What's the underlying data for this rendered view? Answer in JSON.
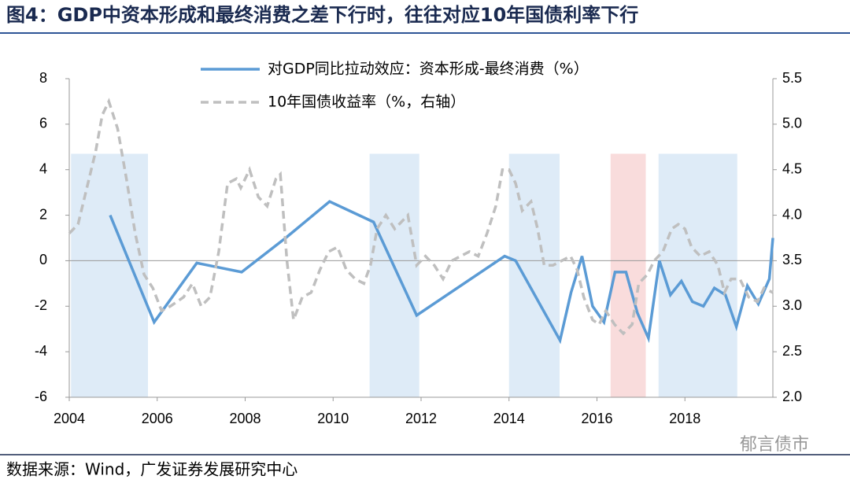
{
  "chart_data": {
    "type": "line",
    "title": "图4：GDP中资本形成和最终消费之差下行时，往往对应10年国债利率下行",
    "source": "数据来源：Wind，广发证券发展研究中心",
    "watermark": "郁言债市",
    "xlim": [
      2004,
      2020
    ],
    "xticks": [
      2004,
      2006,
      2008,
      2010,
      2012,
      2014,
      2016,
      2018
    ],
    "ylim": [
      -6,
      8
    ],
    "yticks": [
      -6,
      -4,
      -2,
      0,
      2,
      4,
      6,
      8
    ],
    "y2lim": [
      2.0,
      5.5
    ],
    "y2ticks": [
      {
        "value": 2.0,
        "label": "2.0"
      },
      2.5,
      {
        "value": 3.0,
        "label": "3.0"
      },
      3.5,
      {
        "value": 4.0,
        "label": "4.0"
      },
      4.5,
      {
        "value": 5.0,
        "label": "5.0"
      },
      5.5
    ],
    "bands": [
      {
        "start": 2004.04,
        "end": 2005.79,
        "top": 4.7,
        "color": "#deebf7"
      },
      {
        "start": 2010.83,
        "end": 2011.96,
        "top": 4.7,
        "color": "#deebf7"
      },
      {
        "start": 2014.0,
        "end": 2015.15,
        "top": 4.7,
        "color": "#deebf7"
      },
      {
        "start": 2016.31,
        "end": 2017.11,
        "top": 4.7,
        "color": "#f9dcdc"
      },
      {
        "start": 2017.4,
        "end": 2019.19,
        "top": 4.7,
        "color": "#deebf7"
      }
    ],
    "series": [
      {
        "name": "对GDP同比拉动效应：资本形成-最终消费（%）",
        "color": "#5b9bd5",
        "dash": false,
        "x": [
          2004.93,
          2005.93,
          2006.9,
          2007.92,
          2008.92,
          2009.92,
          2010.92,
          2011.9,
          2013.9,
          2014.15,
          2015.16,
          2015.41,
          2015.66,
          2015.9,
          2016.16,
          2016.41,
          2016.66,
          2016.92,
          2017.17,
          2017.42,
          2017.67,
          2017.92,
          2018.17,
          2018.42,
          2018.67,
          2018.92,
          2019.17,
          2019.42,
          2019.67,
          2019.92,
          2020.0
        ],
        "values": [
          2.0,
          -2.7,
          -0.1,
          -0.5,
          1.0,
          2.6,
          1.7,
          -2.4,
          0.2,
          0.0,
          -3.5,
          -1.4,
          0.2,
          -2.0,
          -2.7,
          -0.5,
          -0.5,
          -2.3,
          -3.4,
          0.0,
          -1.5,
          -0.9,
          -1.8,
          -2.0,
          -1.2,
          -1.5,
          -2.9,
          -1.1,
          -1.9,
          -0.8,
          1.0
        ]
      },
      {
        "name": "10年国债收益率（%，右轴）",
        "color": "#bfbfbf",
        "dash": true,
        "axis": "y2",
        "x": [
          2004.0,
          2004.2,
          2004.4,
          2004.6,
          2004.75,
          2004.9,
          2005.1,
          2005.3,
          2005.5,
          2005.7,
          2005.9,
          2006.1,
          2006.3,
          2006.6,
          2006.8,
          2007.0,
          2007.2,
          2007.4,
          2007.6,
          2007.8,
          2007.9,
          2008.1,
          2008.3,
          2008.5,
          2008.7,
          2008.8,
          2008.95,
          2009.1,
          2009.3,
          2009.5,
          2009.7,
          2009.9,
          2010.1,
          2010.3,
          2010.5,
          2010.7,
          2010.85,
          2011.0,
          2011.2,
          2011.4,
          2011.6,
          2011.7,
          2011.9,
          2012.1,
          2012.3,
          2012.5,
          2012.7,
          2012.9,
          2013.1,
          2013.3,
          2013.5,
          2013.7,
          2013.85,
          2014.0,
          2014.15,
          2014.3,
          2014.5,
          2014.65,
          2014.8,
          2015.0,
          2015.2,
          2015.4,
          2015.55,
          2015.7,
          2015.9,
          2016.05,
          2016.2,
          2016.4,
          2016.6,
          2016.8,
          2016.95,
          2017.15,
          2017.3,
          2017.5,
          2017.7,
          2017.85,
          2018.0,
          2018.15,
          2018.35,
          2018.55,
          2018.75,
          2018.9,
          2019.05,
          2019.25,
          2019.45,
          2019.65,
          2019.8,
          2020.0
        ],
        "values": [
          3.8,
          3.9,
          4.3,
          4.7,
          5.1,
          5.25,
          4.95,
          4.4,
          3.8,
          3.35,
          3.2,
          2.95,
          3.0,
          3.1,
          3.25,
          3.0,
          3.1,
          3.6,
          4.35,
          4.4,
          4.3,
          4.5,
          4.2,
          4.1,
          4.4,
          4.45,
          3.5,
          2.85,
          3.1,
          3.15,
          3.4,
          3.6,
          3.65,
          3.4,
          3.3,
          3.25,
          3.45,
          3.85,
          4.0,
          3.85,
          3.95,
          4.0,
          3.45,
          3.55,
          3.45,
          3.3,
          3.5,
          3.55,
          3.6,
          3.55,
          3.8,
          4.1,
          4.5,
          4.5,
          4.35,
          4.05,
          4.15,
          3.85,
          3.45,
          3.45,
          3.5,
          3.55,
          3.4,
          3.1,
          2.85,
          2.8,
          2.95,
          2.8,
          2.7,
          2.8,
          3.25,
          3.35,
          3.5,
          3.6,
          3.85,
          3.9,
          3.85,
          3.65,
          3.55,
          3.6,
          3.45,
          3.15,
          3.3,
          3.3,
          3.1,
          3.05,
          3.2,
          3.15
        ]
      }
    ]
  }
}
